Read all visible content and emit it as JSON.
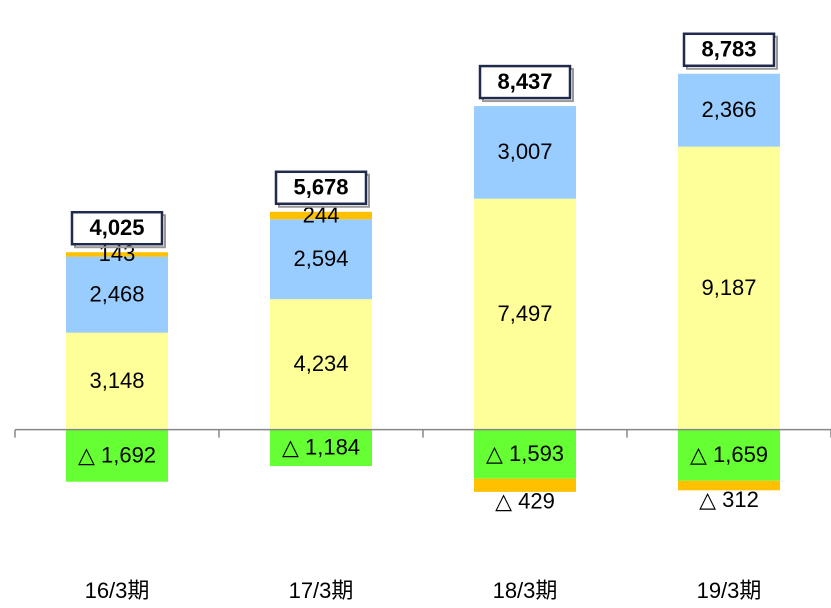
{
  "chart_data": {
    "type": "stacked_bar",
    "categories": [
      "16/3期",
      "17/3期",
      "18/3期",
      "19/3期"
    ],
    "series": [
      {
        "color": "#ffff99",
        "values": [
          3148,
          4234,
          7497,
          9187
        ],
        "value_labels": [
          "3,148",
          "4,234",
          "7,497",
          "9,187"
        ]
      },
      {
        "color": "#99ccff",
        "values": [
          2468,
          2594,
          3007,
          2366
        ],
        "value_labels": [
          "2,468",
          "2,594",
          "3,007",
          "2,366"
        ]
      },
      {
        "color": "#66ff33",
        "values": [
          -1692,
          -1184,
          -1593,
          -1659
        ],
        "value_labels": [
          "△ 1,692",
          "△ 1,184",
          "△ 1,593",
          "△ 1,659"
        ]
      },
      {
        "color": "#ffc000",
        "values": [
          143,
          244,
          -429,
          -312
        ],
        "value_labels": [
          "143",
          "244",
          "△ 429",
          "△ 312"
        ]
      }
    ],
    "totals": {
      "values": [
        4025,
        5678,
        8437,
        8783
      ],
      "value_labels": [
        "4,025",
        "5,678",
        "8,437",
        "8,783"
      ]
    },
    "ylim": [
      -3000,
      12000
    ]
  }
}
